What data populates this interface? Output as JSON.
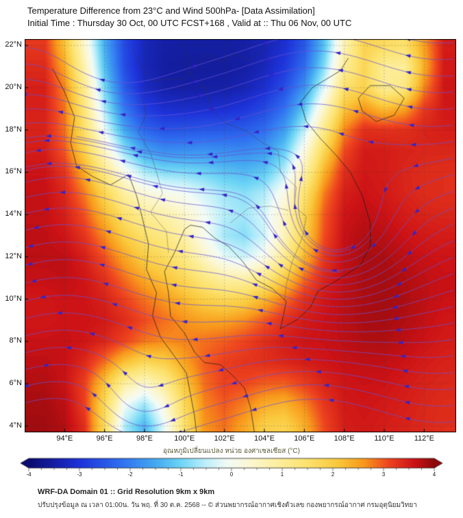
{
  "header": {
    "title_line1": "Temperature Difference from 23°C and Wind 500hPa- [Data Assimilation]",
    "title_line2": "Initial Time : Thursday 30 Oct, 00 UTC FCST+168 , Valid at ::  Thu 06 Nov, 00 UTC"
  },
  "footer": {
    "line1": "WRF-DA Domain 01 :: Grid Resolution 9km x 9km",
    "line2": "ปรับปรุงข้อมูล ณ เวลา 01:00น. วัน พฤ. ที่ 30 ต.ค. 2568 -- © ส่วนพยากรณ์อากาศเชิงตัวเลข กองพยากรณ์อากาศ กรมอุตุนิยมวิทยา"
  },
  "chart_data": {
    "type": "heatmap",
    "title": "Temperature Difference from 23°C and Wind 500hPa- [Data Assimilation]",
    "subtitle": "Initial Time : Thursday 30 Oct, 00 UTC FCST+168 , Valid at :: Thu 06 Nov, 00 UTC",
    "x_range": [
      92.0,
      113.6
    ],
    "y_range": [
      3.7,
      22.3
    ],
    "x_ticks": [
      94,
      96,
      98,
      100,
      102,
      104,
      106,
      108,
      110,
      112
    ],
    "x_tick_labels": [
      "94°E",
      "96°E",
      "98°E",
      "100°E",
      "102°E",
      "104°E",
      "106°E",
      "108°E",
      "110°E",
      "112°E"
    ],
    "y_ticks": [
      22,
      20,
      18,
      16,
      14,
      12,
      10,
      8,
      6,
      4
    ],
    "y_tick_labels": [
      "22°N",
      "20°N",
      "18°N",
      "16°N",
      "14°N",
      "12°N",
      "10°N",
      "8°N",
      "6°N",
      "4°N"
    ],
    "grid": true,
    "colorbar": {
      "label": "อุณหภูมิเปลี่ยนแปลง หน่วย องศาเซลเซียส (°C)",
      "min": -4,
      "max": 4,
      "ticks": [
        -4,
        -3,
        -2,
        -1,
        0,
        1,
        2,
        3,
        4
      ],
      "tick_labels": [
        "-4",
        "-3",
        "-2",
        "-1",
        "0",
        "1",
        "2",
        "3",
        "4"
      ]
    },
    "colormap": [
      [
        -4.0,
        "#0b0b70"
      ],
      [
        -3.0,
        "#1e33d9"
      ],
      [
        -2.2,
        "#2f6ff0"
      ],
      [
        -1.5,
        "#45aaf0"
      ],
      [
        -1.0,
        "#6fd6f5"
      ],
      [
        -0.5,
        "#c0f0fa"
      ],
      [
        -0.1,
        "#f2fbf6"
      ],
      [
        0.3,
        "#fbf8d8"
      ],
      [
        0.9,
        "#fdef9e"
      ],
      [
        1.5,
        "#fce26e"
      ],
      [
        2.1,
        "#fac83c"
      ],
      [
        2.6,
        "#f8991c"
      ],
      [
        3.1,
        "#ee441f"
      ],
      [
        3.6,
        "#cc1216"
      ],
      [
        4.0,
        "#8c090c"
      ]
    ],
    "temperature_diff_c": {
      "lon_start": 93,
      "lon_step": 1,
      "lat_start": 22,
      "lat_step": -1,
      "values": [
        [
          3.5,
          2.2,
          0.3,
          -1.8,
          -2.8,
          -3.4,
          -3.5,
          -3.5,
          -3.5,
          -3.5,
          -3.5,
          -3.4,
          -3.2,
          -2.8,
          -1.6,
          0.6,
          2.4,
          2.0,
          1.2,
          2.9,
          3.7
        ],
        [
          3.6,
          2.8,
          0.8,
          -1.5,
          -2.9,
          -3.5,
          -3.6,
          -3.6,
          -3.6,
          -3.6,
          -3.6,
          -3.4,
          -3.0,
          -2.4,
          -1.2,
          1.2,
          2.8,
          1.0,
          -0.8,
          2.7,
          3.8
        ],
        [
          3.6,
          3.1,
          1.2,
          -1.2,
          -2.7,
          -3.4,
          -3.6,
          -3.6,
          -3.6,
          -3.6,
          -3.5,
          -3.2,
          -2.8,
          -2.0,
          -0.6,
          1.8,
          2.6,
          -1.4,
          0.8,
          3.2,
          3.7
        ],
        [
          3.6,
          3.2,
          1.6,
          -0.8,
          -2.3,
          -3.0,
          -3.2,
          -3.2,
          -3.2,
          -3.2,
          -3.0,
          -2.8,
          -2.3,
          -1.3,
          0.4,
          2.6,
          3.2,
          2.2,
          2.8,
          3.4,
          3.6
        ],
        [
          3.5,
          2.9,
          1.6,
          -0.4,
          -1.8,
          -2.5,
          -2.7,
          -2.6,
          -2.5,
          -2.5,
          -2.5,
          -2.3,
          -1.8,
          -0.7,
          1.2,
          3.1,
          3.6,
          3.5,
          3.5,
          3.5,
          3.5
        ],
        [
          3.6,
          3.2,
          2.0,
          0.4,
          -1.0,
          -1.8,
          -1.9,
          -1.8,
          -1.7,
          -1.8,
          -1.9,
          -1.8,
          -1.3,
          -0.1,
          2.0,
          3.4,
          3.6,
          3.5,
          3.4,
          3.4,
          3.4
        ],
        [
          3.7,
          3.4,
          2.6,
          1.2,
          0.1,
          -0.9,
          -1.0,
          -0.9,
          -1.0,
          -1.2,
          -1.4,
          -1.3,
          -0.8,
          0.6,
          2.8,
          3.5,
          3.6,
          3.5,
          3.4,
          3.3,
          3.3
        ],
        [
          3.7,
          3.5,
          3.0,
          1.8,
          0.9,
          0.2,
          0.3,
          0.1,
          -0.3,
          -0.7,
          -0.9,
          -0.7,
          0.0,
          1.4,
          3.1,
          3.6,
          3.6,
          3.5,
          3.4,
          3.3,
          3.3
        ],
        [
          3.7,
          3.5,
          3.1,
          2.3,
          1.4,
          0.9,
          0.9,
          0.6,
          0.1,
          -0.4,
          -0.5,
          -0.2,
          0.7,
          2.0,
          3.3,
          3.7,
          3.7,
          3.6,
          3.5,
          3.4,
          3.4
        ],
        [
          3.7,
          3.6,
          3.3,
          2.8,
          1.9,
          1.4,
          1.3,
          0.9,
          -0.3,
          -1.2,
          -1.3,
          -0.8,
          0.2,
          1.8,
          3.2,
          3.7,
          3.9,
          3.7,
          3.6,
          3.5,
          3.5
        ],
        [
          3.7,
          3.9,
          3.5,
          3.1,
          2.5,
          1.8,
          1.7,
          1.3,
          0.4,
          -0.6,
          -0.9,
          -0.4,
          0.9,
          2.4,
          3.4,
          3.7,
          3.9,
          3.8,
          3.7,
          3.6,
          3.6
        ],
        [
          3.6,
          3.8,
          3.6,
          3.4,
          2.9,
          2.3,
          2.2,
          1.8,
          1.3,
          0.8,
          0.8,
          1.2,
          2.1,
          3.0,
          3.5,
          3.7,
          3.8,
          3.9,
          3.8,
          3.7,
          3.6
        ],
        [
          3.5,
          3.6,
          3.6,
          3.5,
          3.2,
          2.8,
          2.7,
          2.3,
          1.9,
          1.7,
          1.9,
          2.3,
          3.0,
          3.4,
          3.6,
          3.7,
          3.8,
          3.9,
          3.8,
          3.7,
          3.6
        ],
        [
          3.5,
          3.6,
          3.6,
          3.6,
          3.4,
          3.1,
          3.0,
          2.7,
          2.5,
          2.5,
          2.7,
          3.1,
          3.4,
          3.6,
          3.6,
          3.7,
          3.9,
          3.9,
          3.8,
          3.7,
          3.5
        ],
        [
          3.6,
          3.7,
          3.6,
          3.6,
          3.5,
          3.1,
          2.8,
          2.8,
          2.9,
          3.0,
          3.2,
          3.4,
          3.6,
          3.6,
          3.6,
          3.7,
          3.8,
          3.8,
          3.7,
          3.6,
          3.5
        ],
        [
          3.7,
          3.7,
          3.5,
          3.0,
          2.2,
          1.6,
          1.9,
          2.6,
          3.1,
          3.3,
          3.3,
          3.4,
          3.5,
          3.6,
          3.6,
          3.6,
          3.7,
          3.7,
          3.6,
          3.5,
          3.4
        ],
        [
          3.8,
          3.6,
          3.2,
          2.0,
          0.6,
          -0.2,
          0.8,
          2.2,
          3.0,
          3.2,
          3.2,
          3.0,
          2.9,
          3.2,
          3.5,
          3.6,
          3.6,
          3.6,
          3.5,
          3.4,
          3.4
        ],
        [
          3.9,
          3.8,
          3.4,
          2.0,
          -0.6,
          -1.4,
          0.2,
          1.9,
          2.9,
          3.1,
          2.8,
          2.3,
          2.1,
          2.6,
          3.3,
          3.6,
          3.6,
          3.5,
          3.5,
          3.4,
          3.3
        ],
        [
          3.9,
          3.8,
          3.6,
          2.4,
          -1.6,
          -2.2,
          -0.4,
          1.7,
          2.8,
          3.0,
          2.4,
          1.7,
          1.5,
          2.2,
          3.2,
          3.6,
          3.5,
          3.5,
          3.4,
          3.4,
          3.3
        ]
      ]
    },
    "wind": {
      "level": "500hPa",
      "u0": -1.0,
      "wave_amp": 0.3,
      "wave_k": 0.5,
      "wave_phase": 94,
      "vortices": [
        {
          "cx": 107.4,
          "cy": 12.6,
          "R": 2.6,
          "S": 2.2
        },
        {
          "cx": 96.2,
          "cy": 21.5,
          "R": 2.2,
          "S": 1.0
        },
        {
          "cx": 97.6,
          "cy": 4.6,
          "R": 1.6,
          "S": 0.9
        }
      ],
      "seed": {
        "x": 113.5,
        "lat_min": 4.2,
        "lat_max": 22.2,
        "step": 0.78
      },
      "inner_seeds": [
        [
          108.5,
          12.6
        ],
        [
          109.4,
          13.0
        ],
        [
          108.0,
          11.3
        ]
      ],
      "line_color": "rgba(104,82,210,0.85)",
      "arrow_color": "#3524c9"
    },
    "coastlines": [
      [
        [
          93.4,
          20.9
        ],
        [
          94.0,
          19.8
        ],
        [
          94.5,
          18.6
        ],
        [
          94.3,
          17.4
        ],
        [
          94.6,
          16.3
        ],
        [
          95.4,
          15.8
        ],
        [
          96.3,
          15.4
        ],
        [
          97.2,
          15.9
        ],
        [
          97.6,
          14.9
        ],
        [
          97.9,
          13.8
        ],
        [
          98.2,
          12.6
        ],
        [
          98.1,
          11.4
        ],
        [
          98.6,
          10.3
        ],
        [
          98.4,
          9.2
        ],
        [
          98.8,
          8.2
        ],
        [
          99.5,
          7.3
        ],
        [
          100.1,
          6.5
        ],
        [
          100.3,
          5.5
        ],
        [
          100.5,
          4.5
        ],
        [
          100.6,
          3.7
        ]
      ],
      [
        [
          103.5,
          3.7
        ],
        [
          103.3,
          4.9
        ],
        [
          103.0,
          5.8
        ],
        [
          102.4,
          6.4
        ],
        [
          101.8,
          6.9
        ],
        [
          101.0,
          7.0
        ],
        [
          100.5,
          7.5
        ],
        [
          100.0,
          8.4
        ],
        [
          99.3,
          9.2
        ],
        [
          99.2,
          10.3
        ],
        [
          99.0,
          11.3
        ],
        [
          99.5,
          12.2
        ],
        [
          100.0,
          13.3
        ],
        [
          100.3,
          13.5
        ],
        [
          100.9,
          13.4
        ],
        [
          101.5,
          12.9
        ],
        [
          102.2,
          12.5
        ],
        [
          102.9,
          11.8
        ],
        [
          103.6,
          10.9
        ],
        [
          104.4,
          10.5
        ],
        [
          105.1,
          9.9
        ],
        [
          104.9,
          9.0
        ],
        [
          104.8,
          8.6
        ],
        [
          105.6,
          9.0
        ],
        [
          106.3,
          9.6
        ],
        [
          106.7,
          10.4
        ],
        [
          107.3,
          10.7
        ],
        [
          108.0,
          11.1
        ],
        [
          108.8,
          11.6
        ],
        [
          109.3,
          12.5
        ],
        [
          109.3,
          13.6
        ],
        [
          108.9,
          14.9
        ],
        [
          108.3,
          16.0
        ],
        [
          107.6,
          16.8
        ],
        [
          106.8,
          17.6
        ],
        [
          106.1,
          18.4
        ],
        [
          105.8,
          19.3
        ],
        [
          106.4,
          20.0
        ],
        [
          107.1,
          20.4
        ],
        [
          107.8,
          20.8
        ],
        [
          108.2,
          21.4
        ]
      ],
      [
        [
          108.7,
          19.5
        ],
        [
          109.3,
          20.1
        ],
        [
          110.3,
          20.1
        ],
        [
          111.0,
          19.5
        ],
        [
          110.5,
          18.7
        ],
        [
          109.6,
          18.4
        ],
        [
          108.9,
          18.9
        ],
        [
          108.7,
          19.5
        ]
      ]
    ],
    "borders": [
      [
        [
          100.1,
          21.7
        ],
        [
          100.3,
          20.6
        ],
        [
          101.1,
          19.9
        ],
        [
          101.3,
          19.0
        ],
        [
          102.1,
          18.3
        ],
        [
          103.0,
          18.0
        ],
        [
          103.9,
          17.4
        ],
        [
          104.7,
          17.0
        ],
        [
          104.8,
          16.0
        ],
        [
          105.6,
          15.3
        ],
        [
          105.5,
          14.4
        ],
        [
          106.1,
          13.9
        ],
        [
          105.9,
          12.9
        ],
        [
          105.4,
          11.8
        ],
        [
          105.1,
          10.7
        ],
        [
          105.0,
          9.9
        ]
      ],
      [
        [
          97.8,
          19.7
        ],
        [
          98.1,
          18.8
        ],
        [
          97.7,
          17.9
        ],
        [
          98.3,
          16.9
        ],
        [
          98.6,
          16.0
        ],
        [
          98.9,
          15.0
        ],
        [
          98.3,
          14.1
        ],
        [
          99.1,
          13.2
        ],
        [
          99.2,
          12.2
        ]
      ],
      [
        [
          97.4,
          21.9
        ],
        [
          97.8,
          21.0
        ],
        [
          98.4,
          20.3
        ],
        [
          99.0,
          20.4
        ],
        [
          99.9,
          20.4
        ],
        [
          100.5,
          20.9
        ],
        [
          101.1,
          21.6
        ],
        [
          101.8,
          21.2
        ],
        [
          102.5,
          21.6
        ],
        [
          103.3,
          21.3
        ],
        [
          104.0,
          21.9
        ]
      ],
      [
        [
          102.3,
          13.6
        ],
        [
          103.2,
          14.3
        ],
        [
          104.3,
          14.4
        ],
        [
          105.2,
          14.2
        ]
      ]
    ]
  }
}
